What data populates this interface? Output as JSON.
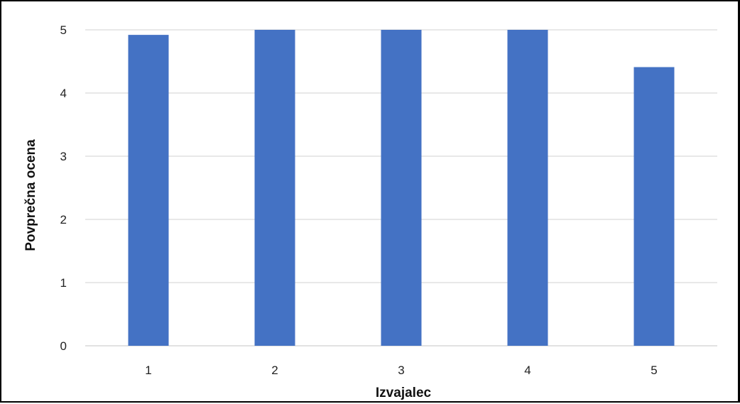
{
  "chart_data": {
    "type": "bar",
    "categories": [
      "1",
      "2",
      "3",
      "4",
      "5"
    ],
    "values": [
      4.92,
      5.0,
      5.0,
      5.0,
      4.41
    ],
    "title": "",
    "xlabel": "Izvajalec",
    "ylabel": "Povprečna ocena",
    "ylim": [
      0,
      5
    ],
    "yticks": [
      "0",
      "1",
      "2",
      "3",
      "4",
      "5"
    ],
    "grid": true,
    "legend": "none",
    "bar_color": "#4472C4",
    "grid_color": "#D9D9D9"
  }
}
